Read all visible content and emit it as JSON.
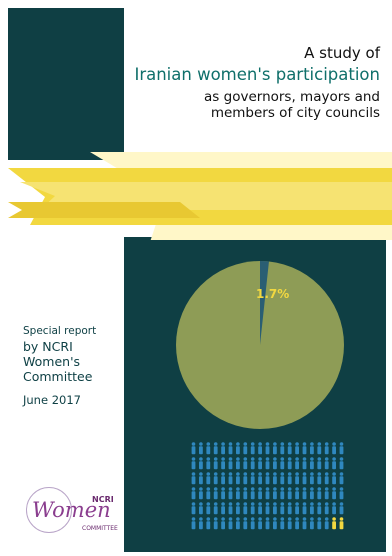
{
  "cover": {
    "title_line1": "A study of",
    "title_line2": "Iranian women's participation",
    "title_line3": "as governors, mayors and",
    "title_line4": "members of city councils",
    "colors": {
      "teal": "#0f3f44",
      "accent_teal": "#0f6f6a",
      "yellow": "#f2d840",
      "pie_green": "#8e9c56"
    }
  },
  "chart_data": {
    "type": "pie",
    "title": "",
    "slices": [
      {
        "label": "1.7%",
        "value": 1.7
      },
      {
        "label": "",
        "value": 98.3
      }
    ],
    "annotation": "1.7%"
  },
  "report": {
    "line1": "Special report",
    "line2": "by NCRI",
    "line3": "Women's",
    "line4": "Committee",
    "date": "June 2017"
  },
  "pictogram": {
    "rows": 6,
    "per_row": 21,
    "highlighted": 2
  },
  "logo": {
    "name": "Women",
    "ncri": "NCRI",
    "subtitle": "COMMITTEE"
  }
}
